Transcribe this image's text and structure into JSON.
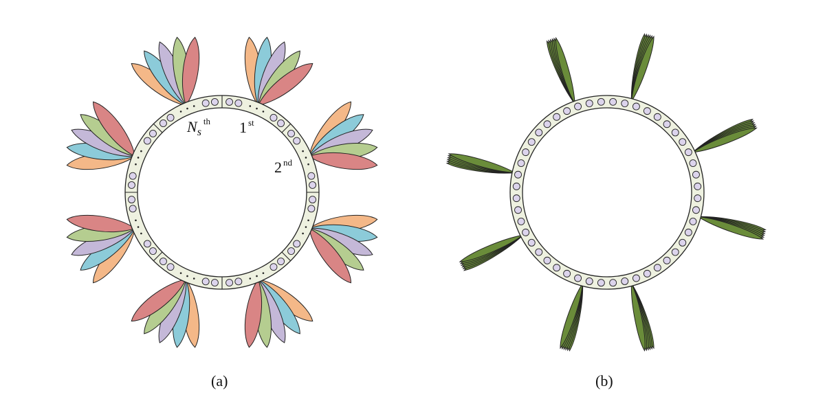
{
  "figure": {
    "panel_a": {
      "caption": "(a)",
      "labels": {
        "ns_base": "N",
        "ns_sub": "s",
        "ns_sup": "th",
        "first_base": "1",
        "first_sup": "st",
        "second_base": "2",
        "second_sup": "nd"
      },
      "sections": 8,
      "elements_per_section": 4,
      "beams_per_section": 5,
      "beam_colors": [
        "#f4b888",
        "#8ccbd9",
        "#c4b8d8",
        "#b5cd90",
        "#d98585"
      ]
    },
    "panel_b": {
      "caption": "(b)",
      "elements": 48,
      "beam_groups": 8,
      "beams_per_group": 6,
      "beam_color": "#6a8c3a"
    },
    "colors": {
      "ring_fill": "#eef1e0",
      "element_fill": "#dcd4ec",
      "stroke": "#222222"
    }
  }
}
